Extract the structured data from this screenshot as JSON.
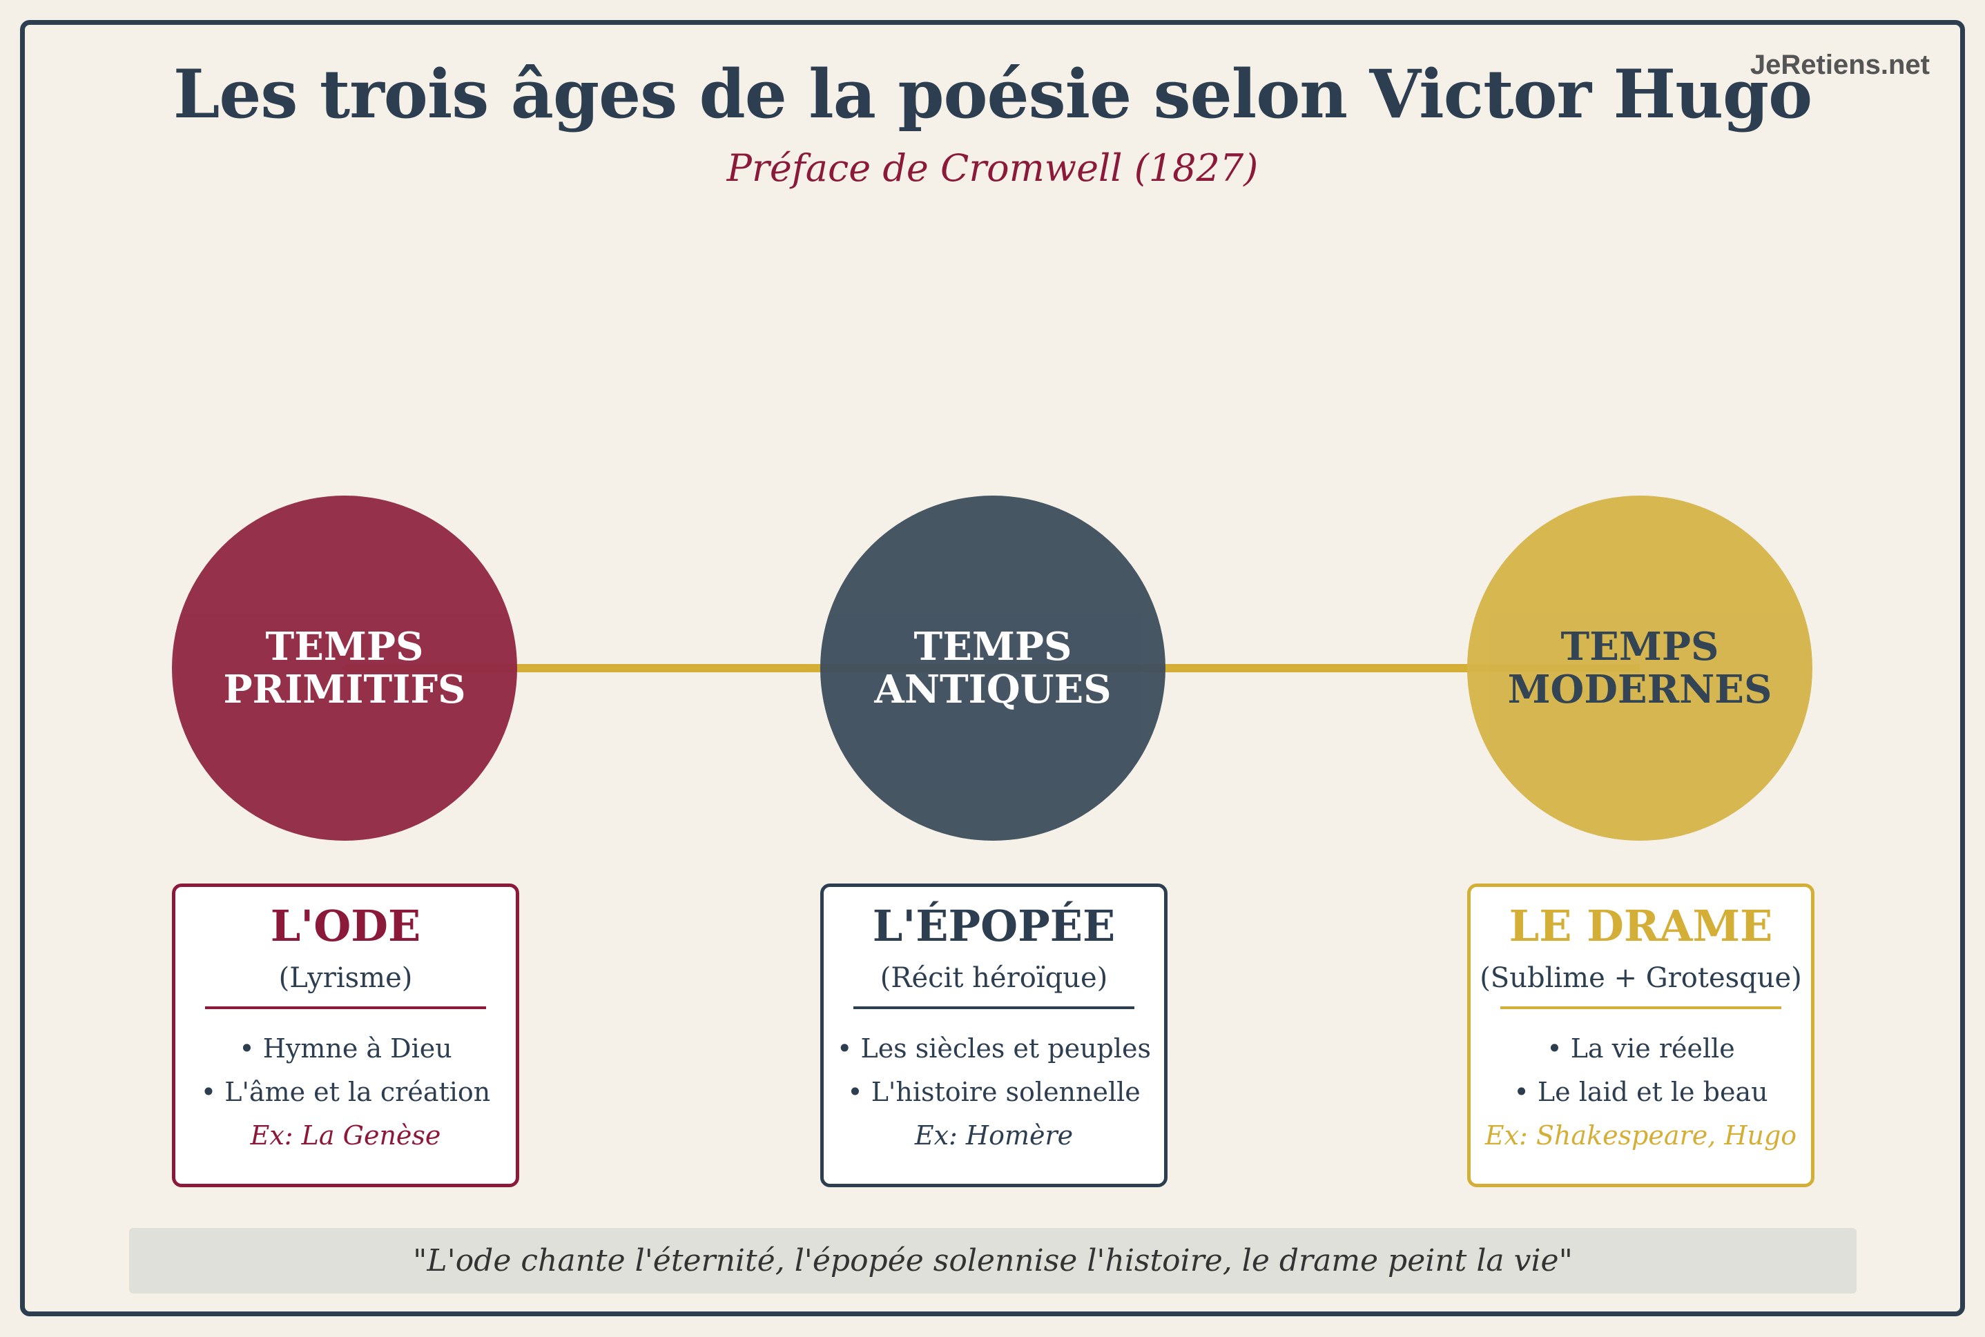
{
  "header": {
    "title": "Les trois âges de la poésie selon Victor Hugo",
    "subtitle": "Préface de Cromwell (1827)",
    "watermark": "JeRetiens.net"
  },
  "colors": {
    "primitifs": "#922945",
    "antiques": "#3f4f5e",
    "modernes": "#d4b44a",
    "timeline": "#d4af37",
    "navy": "#2c3e50",
    "maroon": "#8b1a3a"
  },
  "ages": [
    {
      "line1": "TEMPS",
      "line2": "PRIMITIFS",
      "genre": "L'ODE",
      "subtitle": "(Lyrisme)",
      "bullets": [
        "• Hymne à Dieu",
        "• L'âme et la création"
      ],
      "example": "Ex: La Genèse"
    },
    {
      "line1": "TEMPS",
      "line2": "ANTIQUES",
      "genre": "L'ÉPOPÉE",
      "subtitle": "(Récit héroïque)",
      "bullets": [
        "• Les siècles et peuples",
        "• L'histoire solennelle"
      ],
      "example": "Ex: Homère"
    },
    {
      "line1": "TEMPS",
      "line2": "MODERNES",
      "genre": "LE DRAME",
      "subtitle": "(Sublime + Grotesque)",
      "bullets": [
        "• La vie réelle",
        "• Le laid et le beau"
      ],
      "example": "Ex: Shakespeare, Hugo"
    }
  ],
  "quote": "\"L'ode chante l'éternité, l'épopée solennise l'histoire, le drame peint la vie\""
}
